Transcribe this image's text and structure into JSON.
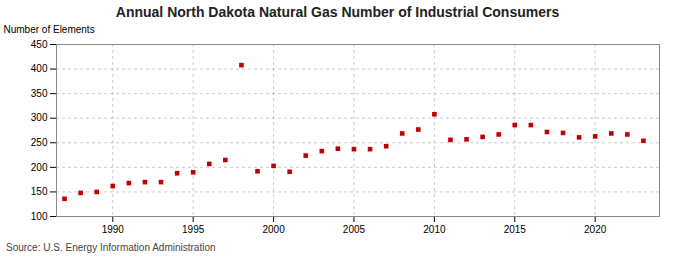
{
  "chart_data": {
    "type": "scatter",
    "title": "Annual North Dakota Natural Gas Number of Industrial Consumers",
    "ylabel": "Number of Elements",
    "source": "Source: U.S. Energy Information Administration",
    "x": [
      1987,
      1988,
      1989,
      1990,
      1991,
      1992,
      1993,
      1994,
      1995,
      1996,
      1997,
      1998,
      1999,
      2000,
      2001,
      2002,
      2003,
      2004,
      2005,
      2006,
      2007,
      2008,
      2009,
      2010,
      2011,
      2012,
      2013,
      2014,
      2015,
      2016,
      2017,
      2018,
      2019,
      2020,
      2021,
      2022,
      2023
    ],
    "values": [
      136,
      148,
      150,
      162,
      168,
      170,
      170,
      188,
      190,
      207,
      215,
      408,
      192,
      203,
      191,
      224,
      233,
      238,
      237,
      237,
      243,
      269,
      277,
      308,
      256,
      257,
      262,
      267,
      286,
      286,
      272,
      270,
      261,
      263,
      269,
      267,
      254
    ],
    "color": "#c00000",
    "marker": "square",
    "grid": true,
    "xlim": [
      1986.5,
      2024
    ],
    "xticks": [
      1990,
      1995,
      2000,
      2005,
      2010,
      2015,
      2020
    ],
    "ylim": [
      100,
      450
    ],
    "yticks": [
      100,
      150,
      200,
      250,
      300,
      350,
      400,
      450
    ]
  }
}
